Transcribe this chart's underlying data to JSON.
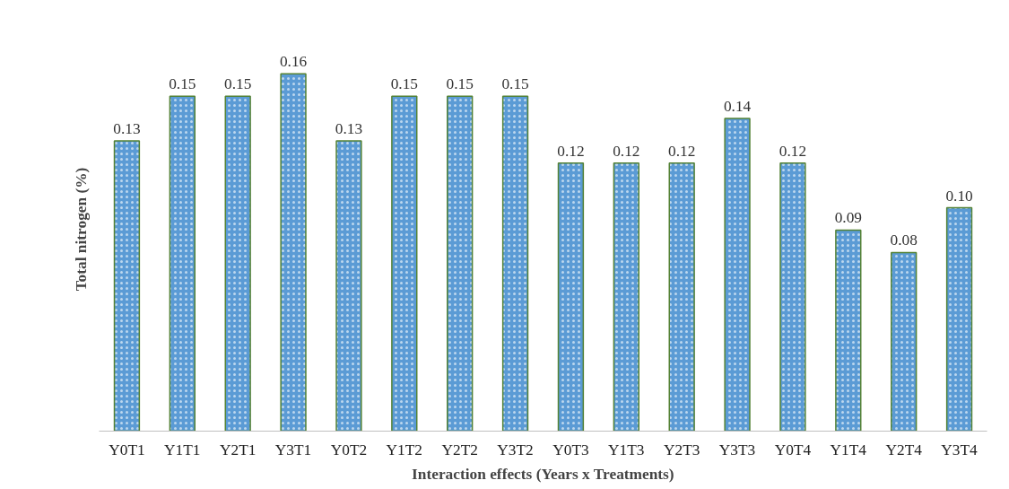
{
  "chart_data": {
    "type": "bar",
    "xlabel": "Interaction effects (Years x Treatments)",
    "ylabel": "Total nitrogen (%)",
    "categories": [
      "Y0T1",
      "Y1T1",
      "Y2T1",
      "Y3T1",
      "Y0T2",
      "Y1T2",
      "Y2T2",
      "Y3T2",
      "Y0T3",
      "Y1T3",
      "Y2T3",
      "Y3T3",
      "Y0T4",
      "Y1T4",
      "Y2T4",
      "Y3T4"
    ],
    "values": [
      0.13,
      0.15,
      0.15,
      0.16,
      0.13,
      0.15,
      0.15,
      0.15,
      0.12,
      0.12,
      0.12,
      0.14,
      0.12,
      0.09,
      0.08,
      0.1
    ],
    "value_labels": [
      "0.13",
      "0.15",
      "0.15",
      "0.16",
      "0.13",
      "0.15",
      "0.15",
      "0.15",
      "0.12",
      "0.12",
      "0.12",
      "0.14",
      "0.12",
      "0.09",
      "0.08",
      "0.10"
    ],
    "color": "#5b9bd5"
  }
}
